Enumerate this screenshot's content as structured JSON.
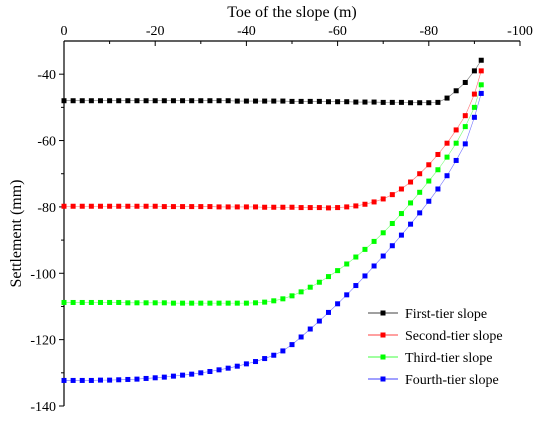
{
  "chart_data": {
    "type": "line",
    "xlabel": "Toe of the slope (m)",
    "ylabel": "Settlement (mm)",
    "xlim": [
      0,
      -100
    ],
    "ylim": [
      -140,
      -30
    ],
    "x_ticks": [
      0,
      -20,
      -40,
      -60,
      -80,
      -100
    ],
    "x_tick_labels": [
      "0",
      "-20",
      "-40",
      "-60",
      "-80",
      "-100"
    ],
    "y_ticks": [
      -40,
      -60,
      -80,
      -100,
      -120,
      -140
    ],
    "y_tick_labels": [
      "-40",
      "-60",
      "-80",
      "-100",
      "-120",
      "-140"
    ],
    "x_axis_position": "top",
    "grid": false,
    "legend_position": "bottom-right",
    "series": [
      {
        "name": "First-tier slope",
        "color": "#000000",
        "points": [
          [
            0,
            -48.0
          ],
          [
            -2,
            -48.0
          ],
          [
            -4,
            -48.0
          ],
          [
            -6,
            -48.0
          ],
          [
            -8,
            -48.0
          ],
          [
            -10,
            -48.0
          ],
          [
            -12,
            -48.0
          ],
          [
            -14,
            -48.0
          ],
          [
            -16,
            -48.0
          ],
          [
            -18,
            -48.0
          ],
          [
            -20,
            -48.0
          ],
          [
            -22,
            -48.0
          ],
          [
            -24,
            -48.0
          ],
          [
            -26,
            -48.0
          ],
          [
            -28,
            -48.0
          ],
          [
            -30,
            -48.0
          ],
          [
            -32,
            -48.0
          ],
          [
            -34,
            -48.0
          ],
          [
            -36,
            -48.0
          ],
          [
            -38,
            -48.1
          ],
          [
            -40,
            -48.1
          ],
          [
            -42,
            -48.1
          ],
          [
            -44,
            -48.1
          ],
          [
            -46,
            -48.1
          ],
          [
            -48,
            -48.1
          ],
          [
            -50,
            -48.2
          ],
          [
            -52,
            -48.2
          ],
          [
            -54,
            -48.2
          ],
          [
            -56,
            -48.2
          ],
          [
            -58,
            -48.3
          ],
          [
            -60,
            -48.3
          ],
          [
            -62,
            -48.3
          ],
          [
            -64,
            -48.4
          ],
          [
            -66,
            -48.4
          ],
          [
            -68,
            -48.4
          ],
          [
            -70,
            -48.5
          ],
          [
            -72,
            -48.5
          ],
          [
            -74,
            -48.5
          ],
          [
            -76,
            -48.6
          ],
          [
            -78,
            -48.6
          ],
          [
            -80,
            -48.6
          ],
          [
            -82,
            -48.5
          ],
          [
            -84,
            -47.2
          ],
          [
            -86,
            -45.0
          ],
          [
            -88,
            -42.5
          ],
          [
            -90,
            -39.0
          ],
          [
            -91.5,
            -35.8
          ]
        ]
      },
      {
        "name": "Second-tier slope",
        "color": "#ff0000",
        "points": [
          [
            0,
            -79.8
          ],
          [
            -2,
            -79.8
          ],
          [
            -4,
            -79.8
          ],
          [
            -6,
            -79.8
          ],
          [
            -8,
            -79.8
          ],
          [
            -10,
            -79.8
          ],
          [
            -12,
            -79.8
          ],
          [
            -14,
            -79.8
          ],
          [
            -16,
            -79.8
          ],
          [
            -18,
            -79.8
          ],
          [
            -20,
            -79.8
          ],
          [
            -22,
            -79.9
          ],
          [
            -24,
            -79.9
          ],
          [
            -26,
            -79.9
          ],
          [
            -28,
            -79.9
          ],
          [
            -30,
            -79.9
          ],
          [
            -32,
            -79.9
          ],
          [
            -34,
            -80.0
          ],
          [
            -36,
            -80.0
          ],
          [
            -38,
            -80.0
          ],
          [
            -40,
            -80.0
          ],
          [
            -42,
            -80.0
          ],
          [
            -44,
            -80.1
          ],
          [
            -46,
            -80.1
          ],
          [
            -48,
            -80.1
          ],
          [
            -50,
            -80.1
          ],
          [
            -52,
            -80.2
          ],
          [
            -54,
            -80.2
          ],
          [
            -56,
            -80.2
          ],
          [
            -58,
            -80.3
          ],
          [
            -60,
            -80.2
          ],
          [
            -62,
            -80.0
          ],
          [
            -64,
            -79.7
          ],
          [
            -66,
            -79.2
          ],
          [
            -68,
            -78.5
          ],
          [
            -70,
            -77.6
          ],
          [
            -72,
            -76.3
          ],
          [
            -74,
            -74.6
          ],
          [
            -76,
            -72.5
          ],
          [
            -78,
            -70.0
          ],
          [
            -80,
            -67.3
          ],
          [
            -82,
            -64.2
          ],
          [
            -84,
            -60.8
          ],
          [
            -86,
            -56.8
          ],
          [
            -88,
            -52.5
          ],
          [
            -90,
            -46.0
          ],
          [
            -91.5,
            -39.0
          ]
        ]
      },
      {
        "name": "Third-tier slope",
        "color": "#00ff00",
        "points": [
          [
            0,
            -108.8
          ],
          [
            -2,
            -108.8
          ],
          [
            -4,
            -108.8
          ],
          [
            -6,
            -108.8
          ],
          [
            -8,
            -108.8
          ],
          [
            -10,
            -108.8
          ],
          [
            -12,
            -108.8
          ],
          [
            -14,
            -108.9
          ],
          [
            -16,
            -108.9
          ],
          [
            -18,
            -108.9
          ],
          [
            -20,
            -108.9
          ],
          [
            -22,
            -108.9
          ],
          [
            -24,
            -109.0
          ],
          [
            -26,
            -109.0
          ],
          [
            -28,
            -109.0
          ],
          [
            -30,
            -109.0
          ],
          [
            -32,
            -109.0
          ],
          [
            -34,
            -109.0
          ],
          [
            -36,
            -109.0
          ],
          [
            -38,
            -109.0
          ],
          [
            -40,
            -109.0
          ],
          [
            -42,
            -108.9
          ],
          [
            -44,
            -108.7
          ],
          [
            -46,
            -108.3
          ],
          [
            -48,
            -107.7
          ],
          [
            -50,
            -106.8
          ],
          [
            -52,
            -105.6
          ],
          [
            -54,
            -104.2
          ],
          [
            -56,
            -102.7
          ],
          [
            -58,
            -101.0
          ],
          [
            -60,
            -99.2
          ],
          [
            -62,
            -97.2
          ],
          [
            -64,
            -95.1
          ],
          [
            -66,
            -92.8
          ],
          [
            -68,
            -90.4
          ],
          [
            -70,
            -87.8
          ],
          [
            -72,
            -85.0
          ],
          [
            -74,
            -82.0
          ],
          [
            -76,
            -78.8
          ],
          [
            -78,
            -75.6
          ],
          [
            -80,
            -72.2
          ],
          [
            -82,
            -68.8
          ],
          [
            -84,
            -65.0
          ],
          [
            -86,
            -60.8
          ],
          [
            -88,
            -55.8
          ],
          [
            -90,
            -50.0
          ],
          [
            -91.5,
            -43.2
          ]
        ]
      },
      {
        "name": "Fourth-tier slope",
        "color": "#0000ff",
        "points": [
          [
            0,
            -132.3
          ],
          [
            -2,
            -132.3
          ],
          [
            -4,
            -132.3
          ],
          [
            -6,
            -132.3
          ],
          [
            -8,
            -132.2
          ],
          [
            -10,
            -132.2
          ],
          [
            -12,
            -132.1
          ],
          [
            -14,
            -132.0
          ],
          [
            -16,
            -131.9
          ],
          [
            -18,
            -131.7
          ],
          [
            -20,
            -131.5
          ],
          [
            -22,
            -131.3
          ],
          [
            -24,
            -131.0
          ],
          [
            -26,
            -130.7
          ],
          [
            -28,
            -130.4
          ],
          [
            -30,
            -130.0
          ],
          [
            -32,
            -129.6
          ],
          [
            -34,
            -129.1
          ],
          [
            -36,
            -128.6
          ],
          [
            -38,
            -128.0
          ],
          [
            -40,
            -127.3
          ],
          [
            -42,
            -126.6
          ],
          [
            -44,
            -125.7
          ],
          [
            -46,
            -124.7
          ],
          [
            -48,
            -123.4
          ],
          [
            -50,
            -121.5
          ],
          [
            -52,
            -119.2
          ],
          [
            -54,
            -116.8
          ],
          [
            -56,
            -114.4
          ],
          [
            -58,
            -111.8
          ],
          [
            -60,
            -109.2
          ],
          [
            -62,
            -106.5
          ],
          [
            -64,
            -103.7
          ],
          [
            -66,
            -100.8
          ],
          [
            -68,
            -97.8
          ],
          [
            -70,
            -94.8
          ],
          [
            -72,
            -91.7
          ],
          [
            -74,
            -88.5
          ],
          [
            -76,
            -85.2
          ],
          [
            -78,
            -81.8
          ],
          [
            -80,
            -78.3
          ],
          [
            -82,
            -74.6
          ],
          [
            -84,
            -70.6
          ],
          [
            -86,
            -66.0
          ],
          [
            -88,
            -61.0
          ],
          [
            -90,
            -53.0
          ],
          [
            -91.5,
            -45.8
          ]
        ]
      }
    ]
  }
}
